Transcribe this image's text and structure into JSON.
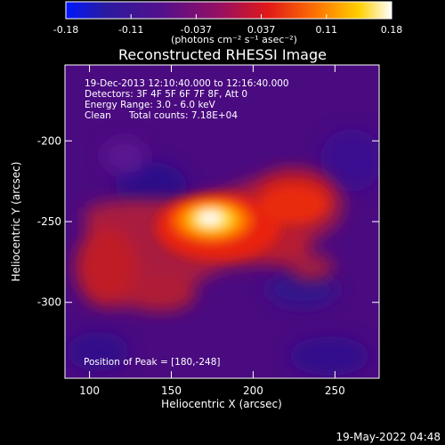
{
  "colorbar": {
    "ticks": [
      "-0.18",
      "-0.11",
      "-0.037",
      "0.037",
      "0.11",
      "0.18"
    ],
    "unit_label": "(photons cm⁻² s⁻¹ asec⁻²)",
    "range": [
      -0.18,
      0.18
    ]
  },
  "info": {
    "line1": "19-Dec-2013 12:10:40.000 to 12:16:40.000",
    "line2": "Detectors: 3F 4F 5F 6F 7F 8F, Att 0",
    "line3": "Energy Range: 3.0 - 6.0 keV",
    "line4_method": "Clean",
    "line4_counts": "Total counts: 7.18E+04",
    "peak": "Position of Peak = [180,-248]"
  },
  "timestamp": "19-May-2022 04:48",
  "chart_data": {
    "type": "heatmap",
    "title": "Reconstructed RHESSI Image",
    "xlabel": "Heliocentric X (arcsec)",
    "ylabel": "Heliocentric Y (arcsec)",
    "xlim": [
      85,
      277
    ],
    "ylim": [
      -347,
      -153
    ],
    "xticks": [
      100,
      150,
      200,
      250
    ],
    "yticks": [
      -200,
      -250,
      -300
    ],
    "peak": {
      "x": 180,
      "y": -248,
      "value": 0.18
    },
    "colormap": "rhessi-blue-purple-red-yellow-white",
    "colormap_stops": [
      "#0018ff",
      "#3a0080",
      "#7a0fa0",
      "#d01010",
      "#ff6a00",
      "#ffd000",
      "#ffffff"
    ]
  }
}
